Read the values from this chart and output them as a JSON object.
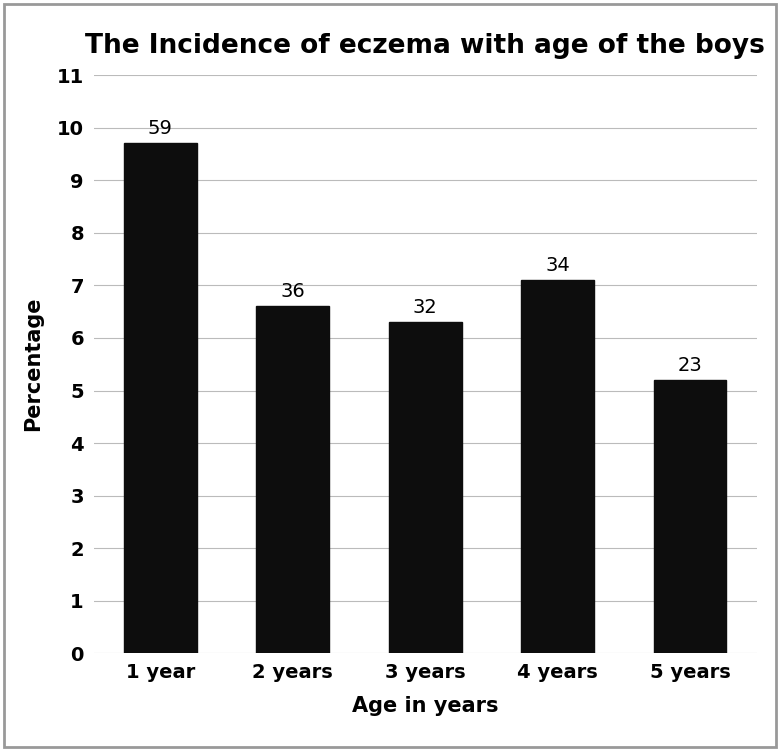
{
  "title": "The Incidence of eczema with age of the boys",
  "xlabel": "Age in years",
  "ylabel": "Percentage",
  "categories": [
    "1 year",
    "2 years",
    "3 years",
    "4 years",
    "5 years"
  ],
  "values": [
    9.7,
    6.6,
    6.3,
    7.1,
    5.2
  ],
  "labels": [
    "59",
    "36",
    "32",
    "34",
    "23"
  ],
  "bar_color": "#0d0d0d",
  "ylim": [
    0,
    11
  ],
  "yticks": [
    0,
    1,
    2,
    3,
    4,
    5,
    6,
    7,
    8,
    9,
    10,
    11
  ],
  "bar_width": 0.55,
  "title_fontsize": 19,
  "axis_label_fontsize": 15,
  "tick_fontsize": 14,
  "annotation_fontsize": 14,
  "background_color": "#ffffff",
  "border_color": "#999999",
  "grid_color": "#bbbbbb"
}
